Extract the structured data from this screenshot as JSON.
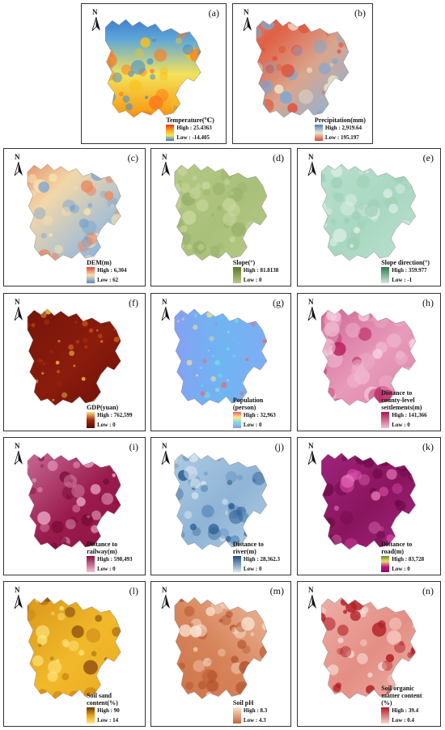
{
  "panels": [
    {
      "id": "a",
      "label": "(a)",
      "title": "Temperature(℃)",
      "high": "High : 25.4363",
      "low": "Low : -14.405",
      "low_color": "#2c7bd0",
      "high_color": "#e8341a",
      "grad": [
        "#e8341a",
        "#f7a21b",
        "#f7e75b",
        "#2c7bd0"
      ],
      "style": "temp"
    },
    {
      "id": "b",
      "label": "(b)",
      "title": "Precipitation(mm)",
      "high": "High : 2,919.64",
      "low": "Low : 195.197",
      "grad": [
        "#4f7fb8",
        "#e9e6d6",
        "#e0462e"
      ],
      "style": "precip"
    },
    {
      "id": "c",
      "label": "(c)",
      "title": "DEM(m)",
      "high": "High : 6,304",
      "low": "Low : 62",
      "grad": [
        "#e04b35",
        "#f2e0b4",
        "#5b8cc3"
      ],
      "style": "dem"
    },
    {
      "id": "d",
      "label": "(d)",
      "title": "Slope(°)",
      "high": "High : 81.8138",
      "low": "Low : 0",
      "grad": [
        "#5a7a28",
        "#b7c98a"
      ],
      "style": "slope"
    },
    {
      "id": "e",
      "label": "(e)",
      "title": "Slope direction(°)",
      "high": "High : 359.977",
      "low": "Low : -1",
      "grad": [
        "#2f7a4a",
        "#cfe9de"
      ],
      "style": "aspect"
    },
    {
      "id": "f",
      "label": "(f)",
      "title": "GDP(yuan)",
      "high": "High : 762,599",
      "low": "Low : 0",
      "grad": [
        "#ffe07a",
        "#a3280f",
        "#5a0a05"
      ],
      "style": "gdp"
    },
    {
      "id": "g",
      "label": "(g)",
      "title": "Population\n(person)",
      "high": "High : 32,963",
      "low": "Low : 0",
      "grad": [
        "#f25b5b",
        "#ffe88a",
        "#7fd9e8",
        "#8f98f3"
      ],
      "style": "pop"
    },
    {
      "id": "h",
      "label": "(h)",
      "title": "Distance to\ncounty-level\nsettlements(m)",
      "high": "High : 141,366",
      "low": "Low : 0",
      "grad": [
        "#a8164f",
        "#f1c0d6"
      ],
      "style": "county"
    },
    {
      "id": "i",
      "label": "(i)",
      "title": "Distance to\nrailway(m)",
      "high": "High : 598,493",
      "low": "Low : 0",
      "grad": [
        "#8a0f3f",
        "#f4bfd3"
      ],
      "style": "rail"
    },
    {
      "id": "j",
      "label": "(j)",
      "title": "Distance to\nriver(m)",
      "high": "High : 28,362.3",
      "low": "Low : 0",
      "grad": [
        "#1f4e86",
        "#d9e8f2"
      ],
      "style": "river"
    },
    {
      "id": "k",
      "label": "(k)",
      "title": "Distance to\nroad(m)",
      "high": "High : 83,728",
      "low": "Low : 0",
      "grad": [
        "#6a8a1c",
        "#e5e07a",
        "#c0147a",
        "#8a0f5a"
      ],
      "style": "road"
    },
    {
      "id": "l",
      "label": "(l)",
      "title": "Soil sand\ncontent(%)",
      "high": "High : 90",
      "low": "Low : 14",
      "grad": [
        "#6b3b0a",
        "#e6a21a",
        "#ffe680"
      ],
      "style": "sand"
    },
    {
      "id": "m",
      "label": "(m)",
      "title": "Soil pH",
      "high": "High : 8.3",
      "low": "Low : 4.3",
      "grad": [
        "#fbe3d2",
        "#c4653c"
      ],
      "style": "ph"
    },
    {
      "id": "n",
      "label": "(n)",
      "title": "Soil organic\nmatter content\n(%)",
      "high": "High : 39.4",
      "low": "Low : 0.4",
      "grad": [
        "#b01e26",
        "#f9d6cf"
      ],
      "style": "som"
    }
  ],
  "north_letter": "N"
}
